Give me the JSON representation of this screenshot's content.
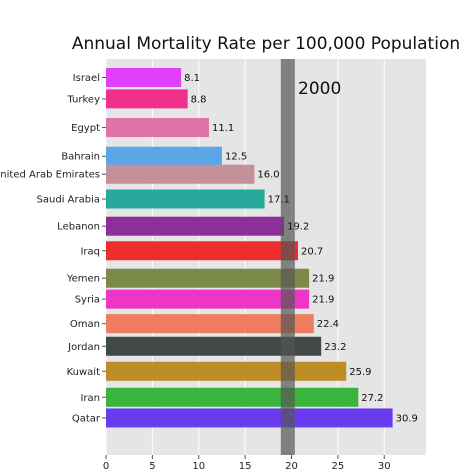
{
  "chart_data": {
    "type": "bar",
    "orientation": "horizontal",
    "title": "Annual Mortality Rate per 100,000 Population",
    "annotation": "2000",
    "xlim": [
      0,
      34.5
    ],
    "x_ticks": [
      "0",
      "5",
      "10",
      "15",
      "20",
      "25",
      "30"
    ],
    "reference_line_x": 19.6,
    "grid": true,
    "background": "#e5e5e5",
    "bars": [
      {
        "category": "Israel",
        "value": 8.1,
        "label": "8.1",
        "pos": 0.0,
        "color": "#e040fb"
      },
      {
        "category": "Turkey",
        "value": 8.8,
        "label": "8.8",
        "pos": 0.88,
        "color": "#f0308c"
      },
      {
        "category": "Egypt",
        "value": 11.1,
        "label": "11.1",
        "pos": 2.06,
        "color": "#e074a8"
      },
      {
        "category": "Bahrain",
        "value": 12.5,
        "label": "12.5",
        "pos": 3.24,
        "color": "#5aa6e6"
      },
      {
        "category": "United Arab Emirates",
        "value": 16.0,
        "label": "16.0",
        "pos": 3.98,
        "color": "#c4909a"
      },
      {
        "category": "Saudi Arabia",
        "value": 17.1,
        "label": "17.1",
        "pos": 5.0,
        "color": "#26a89a"
      },
      {
        "category": "Lebanon",
        "value": 19.2,
        "label": "19.2",
        "pos": 6.12,
        "color": "#8c2f98"
      },
      {
        "category": "Iraq",
        "value": 20.7,
        "label": "20.7",
        "pos": 7.13,
        "color": "#ee2e2e"
      },
      {
        "category": "Yemen",
        "value": 21.9,
        "label": "21.9",
        "pos": 8.26,
        "color": "#7c8a48"
      },
      {
        "category": "Syria",
        "value": 21.9,
        "label": "21.9",
        "pos": 9.12,
        "color": "#ee36c6"
      },
      {
        "category": "Oman",
        "value": 22.4,
        "label": "22.4",
        "pos": 10.13,
        "color": "#ee7c5e"
      },
      {
        "category": "Jordan",
        "value": 23.2,
        "label": "23.2",
        "pos": 11.06,
        "color": "#404848"
      },
      {
        "category": "Kuwait",
        "value": 25.9,
        "label": "25.9",
        "pos": 12.09,
        "color": "#be8e26"
      },
      {
        "category": "Iran",
        "value": 27.2,
        "label": "27.2",
        "pos": 13.16,
        "color": "#3ab43a"
      },
      {
        "category": "Qatar",
        "value": 30.9,
        "label": "30.9",
        "pos": 14.01,
        "color": "#6a3cf0"
      }
    ]
  }
}
